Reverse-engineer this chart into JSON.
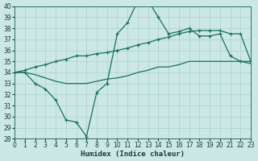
{
  "xlabel": "Humidex (Indice chaleur)",
  "bg_color": "#cce8e4",
  "line_color": "#1a6e64",
  "grid_color": "#aad0cc",
  "x_values": [
    0,
    1,
    2,
    3,
    4,
    5,
    6,
    7,
    8,
    9,
    10,
    11,
    12,
    13,
    14,
    15,
    16,
    17,
    18,
    19,
    20,
    21,
    22,
    23
  ],
  "line1": [
    34.0,
    34.0,
    33.0,
    32.5,
    31.5,
    29.7,
    29.5,
    28.2,
    32.2,
    33.0,
    37.5,
    38.5,
    40.5,
    40.5,
    39.0,
    37.5,
    37.7,
    38.0,
    37.3,
    37.3,
    37.5,
    35.5,
    35.0,
    35.0
  ],
  "line2": [
    34.0,
    34.2,
    34.5,
    34.7,
    35.0,
    35.2,
    35.5,
    35.5,
    35.7,
    35.8,
    36.0,
    36.2,
    36.5,
    36.7,
    37.0,
    37.2,
    37.5,
    37.7,
    37.8,
    37.8,
    37.8,
    37.5,
    37.5,
    35.0
  ],
  "line3": [
    34.0,
    34.0,
    33.8,
    33.5,
    33.2,
    33.0,
    33.0,
    33.0,
    33.2,
    33.4,
    33.5,
    33.7,
    34.0,
    34.2,
    34.5,
    34.5,
    34.7,
    35.0,
    35.0,
    35.0,
    35.0,
    35.0,
    35.0,
    34.8
  ],
  "ylim": [
    28,
    40
  ],
  "xlim": [
    0,
    23
  ],
  "yticks": [
    28,
    29,
    30,
    31,
    32,
    33,
    34,
    35,
    36,
    37,
    38,
    39,
    40
  ],
  "xticks": [
    0,
    1,
    2,
    3,
    4,
    5,
    6,
    7,
    8,
    9,
    10,
    11,
    12,
    13,
    14,
    15,
    16,
    17,
    18,
    19,
    20,
    21,
    22,
    23
  ],
  "tick_fontsize": 5.5,
  "xlabel_fontsize": 6.5
}
